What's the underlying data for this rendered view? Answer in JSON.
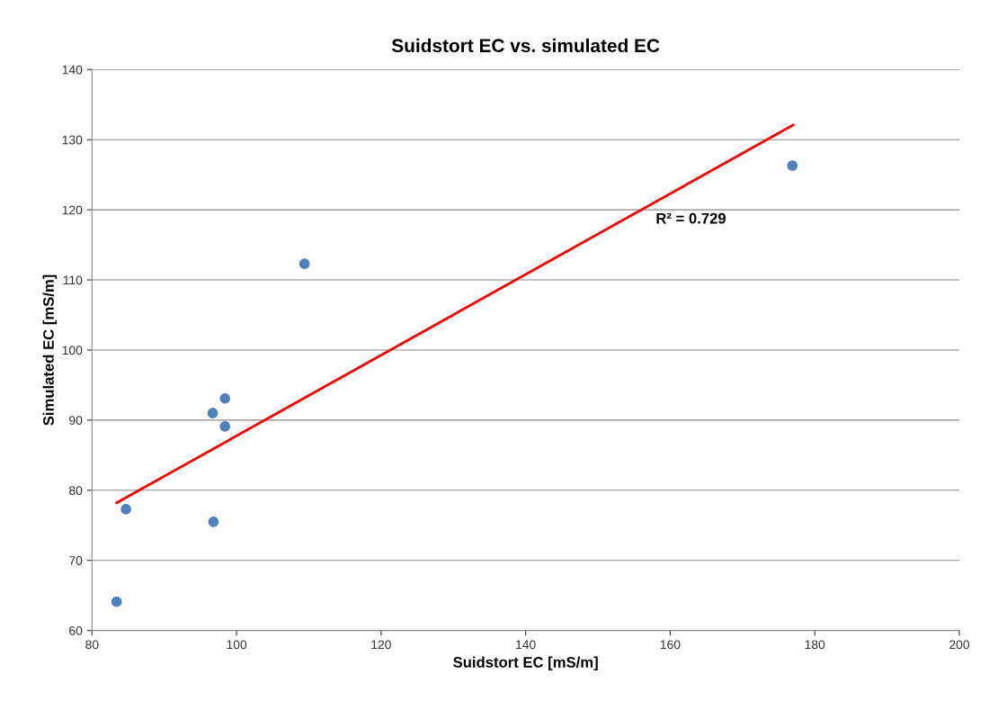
{
  "chart_data": {
    "type": "scatter",
    "title": "Suidstort EC vs. simulated EC",
    "xlabel": "Suidstort EC [mS/m]",
    "ylabel": "Simulated EC [mS/m]",
    "xlim": [
      80,
      200
    ],
    "xticks": [
      80,
      100,
      120,
      140,
      160,
      180,
      200
    ],
    "ylim": [
      60,
      140
    ],
    "yticks": [
      60,
      70,
      80,
      90,
      100,
      110,
      120,
      130,
      140
    ],
    "grid": "y",
    "marker": "circle",
    "series": [
      {
        "color": "#4f81bd",
        "x": [
          83.4,
          84.7,
          96.8,
          96.7,
          98.4,
          98.4,
          109.4,
          176.9
        ],
        "values": [
          64.1,
          77.3,
          75.5,
          91.0,
          93.1,
          89.1,
          112.3,
          126.3
        ]
      },
      {
        "type": "line",
        "color": "#ff0000",
        "line_style": "solid",
        "marker": "none",
        "x": [
          83.4,
          177.0
        ],
        "values": [
          78.2,
          132.1
        ]
      }
    ],
    "annotations": [
      "R² = 0.729"
    ]
  }
}
